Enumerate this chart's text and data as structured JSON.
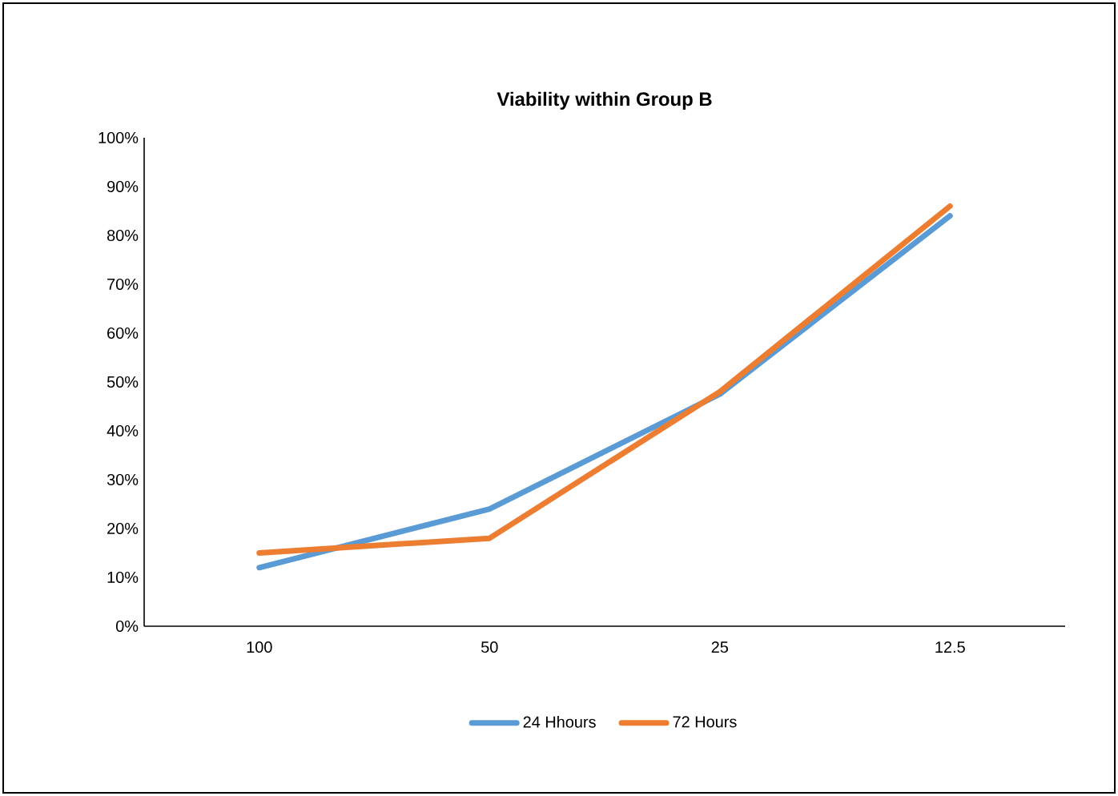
{
  "chart_data": {
    "type": "line",
    "title": "Viability within Group B",
    "categories": [
      "100",
      "50",
      "25",
      "12.5"
    ],
    "series": [
      {
        "name": "24 Hhours",
        "color": "#5b9bd5",
        "values": [
          12,
          24,
          47.5,
          84
        ]
      },
      {
        "name": "72 Hours",
        "color": "#ed7d31",
        "values": [
          15,
          18,
          48,
          86
        ]
      }
    ],
    "ylim": [
      0,
      100
    ],
    "yticks": [
      {
        "value": 0,
        "label": "0%"
      },
      {
        "value": 10,
        "label": "10%"
      },
      {
        "value": 20,
        "label": "20%"
      },
      {
        "value": 30,
        "label": "30%"
      },
      {
        "value": 40,
        "label": "40%"
      },
      {
        "value": 50,
        "label": "50%"
      },
      {
        "value": 60,
        "label": "60%"
      },
      {
        "value": 70,
        "label": "70%"
      },
      {
        "value": 80,
        "label": "80%"
      },
      {
        "value": 90,
        "label": "90%"
      },
      {
        "value": 100,
        "label": "100%"
      }
    ],
    "grid": false,
    "legend": "bottom",
    "marker": "none",
    "line_style": "solid"
  }
}
